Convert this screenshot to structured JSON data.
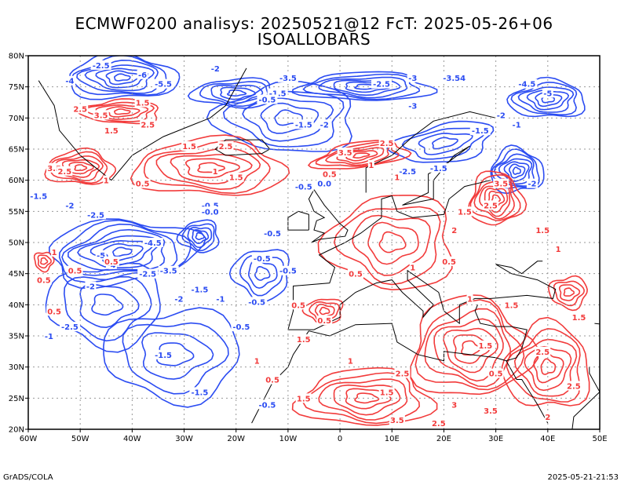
{
  "header": {
    "title_line1": "ECMWF0200 analisys: 20250521@12 FcT: 2025-05-26+06",
    "title_line2": "ISOALLOBARS"
  },
  "footer": {
    "left": "GrADS/COLA",
    "right": "2025-05-21-21:53"
  },
  "map": {
    "lon_range": [
      -60,
      50
    ],
    "lat_range": [
      20,
      80
    ],
    "lon_ticks": [
      "60W",
      "50W",
      "40W",
      "30W",
      "20W",
      "10W",
      "0",
      "10E",
      "20E",
      "30E",
      "40E",
      "50E"
    ],
    "lat_ticks": [
      "20N",
      "25N",
      "30N",
      "35N",
      "40N",
      "45N",
      "50N",
      "55N",
      "60N",
      "65N",
      "70N",
      "75N",
      "80N"
    ],
    "colors": {
      "negative_contour": "#2b4cf2",
      "positive_contour": "#f23b3b",
      "coastline": "#000000",
      "grid": "#999999"
    },
    "contour_labels": [
      {
        "text": "-2.5",
        "lon": -46,
        "lat": 78.5,
        "sign": "neg"
      },
      {
        "text": "-4",
        "lon": -52,
        "lat": 76,
        "sign": "neg"
      },
      {
        "text": "-5.5",
        "lon": -34,
        "lat": 75.5,
        "sign": "neg"
      },
      {
        "text": "-6",
        "lon": -38,
        "lat": 77,
        "sign": "neg"
      },
      {
        "text": "-2",
        "lon": -24,
        "lat": 78,
        "sign": "neg"
      },
      {
        "text": "-3.5",
        "lon": -10,
        "lat": 76.5,
        "sign": "neg"
      },
      {
        "text": "-1.5",
        "lon": -12,
        "lat": 74,
        "sign": "neg"
      },
      {
        "text": "-0.5",
        "lon": -14,
        "lat": 73,
        "sign": "neg"
      },
      {
        "text": "-2.5",
        "lon": 8,
        "lat": 75.5,
        "sign": "neg"
      },
      {
        "text": "-3",
        "lon": 14,
        "lat": 76.5,
        "sign": "neg"
      },
      {
        "text": "-3.54",
        "lon": 22,
        "lat": 76.5,
        "sign": "neg"
      },
      {
        "text": "-4.5",
        "lon": 36,
        "lat": 75.5,
        "sign": "neg"
      },
      {
        "text": "-5",
        "lon": 40,
        "lat": 74,
        "sign": "neg"
      },
      {
        "text": "-3",
        "lon": 14,
        "lat": 72,
        "sign": "neg"
      },
      {
        "text": "-1.5",
        "lon": -7,
        "lat": 69,
        "sign": "neg"
      },
      {
        "text": "-2",
        "lon": -3,
        "lat": 69,
        "sign": "neg"
      },
      {
        "text": "-2",
        "lon": 31,
        "lat": 70.5,
        "sign": "neg"
      },
      {
        "text": "-1",
        "lon": 34,
        "lat": 69,
        "sign": "neg"
      },
      {
        "text": "-1.5",
        "lon": 27,
        "lat": 68,
        "sign": "neg"
      },
      {
        "text": "-2.5",
        "lon": 13,
        "lat": 61.5,
        "sign": "neg"
      },
      {
        "text": "-1.5",
        "lon": 19,
        "lat": 62,
        "sign": "neg"
      },
      {
        "text": "-2",
        "lon": 37,
        "lat": 59.5,
        "sign": "neg"
      },
      {
        "text": "-0.5",
        "lon": -7,
        "lat": 59,
        "sign": "neg"
      },
      {
        "text": "-1.5",
        "lon": -58,
        "lat": 57.5,
        "sign": "neg"
      },
      {
        "text": "-2",
        "lon": -52,
        "lat": 56,
        "sign": "neg"
      },
      {
        "text": "-2.5",
        "lon": -47,
        "lat": 54.5,
        "sign": "neg"
      },
      {
        "text": "-4.5",
        "lon": -36,
        "lat": 50,
        "sign": "neg"
      },
      {
        "text": "-5",
        "lon": -46,
        "lat": 48,
        "sign": "neg"
      },
      {
        "text": "-4",
        "lon": -44,
        "lat": 46.5,
        "sign": "neg"
      },
      {
        "text": "-2.5",
        "lon": -37,
        "lat": 45,
        "sign": "neg"
      },
      {
        "text": "-3.5",
        "lon": -33,
        "lat": 45.5,
        "sign": "neg"
      },
      {
        "text": "-2",
        "lon": -48,
        "lat": 43,
        "sign": "neg"
      },
      {
        "text": "-1.5",
        "lon": -27,
        "lat": 42.5,
        "sign": "neg"
      },
      {
        "text": "-2",
        "lon": -31,
        "lat": 41,
        "sign": "neg"
      },
      {
        "text": "-1",
        "lon": -23,
        "lat": 41,
        "sign": "neg"
      },
      {
        "text": "-0.5",
        "lon": -15,
        "lat": 47.5,
        "sign": "neg"
      },
      {
        "text": "-0.5",
        "lon": -10,
        "lat": 45.5,
        "sign": "neg"
      },
      {
        "text": "-0.5",
        "lon": -16,
        "lat": 40.5,
        "sign": "neg"
      },
      {
        "text": "-0.5",
        "lon": -19,
        "lat": 36.5,
        "sign": "neg"
      },
      {
        "text": "-1.5",
        "lon": -34,
        "lat": 32,
        "sign": "neg"
      },
      {
        "text": "-1.5",
        "lon": -27,
        "lat": 26,
        "sign": "neg"
      },
      {
        "text": "-2.5",
        "lon": -52,
        "lat": 36.5,
        "sign": "neg"
      },
      {
        "text": "-1",
        "lon": -56,
        "lat": 35,
        "sign": "neg"
      },
      {
        "text": "-0.5",
        "lon": -14,
        "lat": 24,
        "sign": "neg"
      },
      {
        "text": "-0.5",
        "lon": -25,
        "lat": 56,
        "sign": "neg"
      },
      {
        "text": "-0.5",
        "lon": -13,
        "lat": 51.5,
        "sign": "neg"
      },
      {
        "text": "2.5",
        "lon": -50,
        "lat": 71.5,
        "sign": "pos"
      },
      {
        "text": "1.5",
        "lon": -38,
        "lat": 72.5,
        "sign": "pos"
      },
      {
        "text": "3.5",
        "lon": -46,
        "lat": 70.5,
        "sign": "pos"
      },
      {
        "text": "2.5",
        "lon": -37,
        "lat": 69,
        "sign": "pos"
      },
      {
        "text": "1.5",
        "lon": -44,
        "lat": 68,
        "sign": "pos"
      },
      {
        "text": "3.5",
        "lon": -55,
        "lat": 62,
        "sign": "pos"
      },
      {
        "text": "2.5",
        "lon": -53,
        "lat": 61.5,
        "sign": "pos"
      },
      {
        "text": "1",
        "lon": -45,
        "lat": 60,
        "sign": "pos"
      },
      {
        "text": "0.5",
        "lon": -38,
        "lat": 59.5,
        "sign": "pos"
      },
      {
        "text": "1.5",
        "lon": -29,
        "lat": 65.5,
        "sign": "pos"
      },
      {
        "text": "2.5",
        "lon": -22,
        "lat": 65.5,
        "sign": "pos"
      },
      {
        "text": "1",
        "lon": -24,
        "lat": 61.5,
        "sign": "pos"
      },
      {
        "text": "1.5",
        "lon": -20,
        "lat": 60.5,
        "sign": "pos"
      },
      {
        "text": "3.5",
        "lon": 1,
        "lat": 64.5,
        "sign": "pos"
      },
      {
        "text": "2.5",
        "lon": 9,
        "lat": 66,
        "sign": "pos"
      },
      {
        "text": "0.5",
        "lon": -2,
        "lat": 61,
        "sign": "pos"
      },
      {
        "text": "1",
        "lon": 6,
        "lat": 62.5,
        "sign": "pos"
      },
      {
        "text": "1",
        "lon": 11,
        "lat": 60.5,
        "sign": "pos"
      },
      {
        "text": "3.5",
        "lon": 31,
        "lat": 59.5,
        "sign": "pos"
      },
      {
        "text": "2.5",
        "lon": 29,
        "lat": 56,
        "sign": "pos"
      },
      {
        "text": "1.5",
        "lon": 24,
        "lat": 55,
        "sign": "pos"
      },
      {
        "text": "2",
        "lon": 22,
        "lat": 52,
        "sign": "pos"
      },
      {
        "text": "1.5",
        "lon": 39,
        "lat": 52,
        "sign": "pos"
      },
      {
        "text": "1",
        "lon": 42,
        "lat": 49,
        "sign": "pos"
      },
      {
        "text": "0.5",
        "lon": -25,
        "lat": 55,
        "sign": "pos"
      },
      {
        "text": "1",
        "lon": -55,
        "lat": 48.5,
        "sign": "pos"
      },
      {
        "text": "0.5",
        "lon": -51,
        "lat": 45.5,
        "sign": "pos"
      },
      {
        "text": "0.5",
        "lon": -44,
        "lat": 47,
        "sign": "pos"
      },
      {
        "text": "0.5",
        "lon": -8,
        "lat": 40,
        "sign": "pos"
      },
      {
        "text": "0.5",
        "lon": -3,
        "lat": 37.5,
        "sign": "pos"
      },
      {
        "text": "1.5",
        "lon": -7,
        "lat": 34.5,
        "sign": "pos"
      },
      {
        "text": "1.5",
        "lon": -7,
        "lat": 25,
        "sign": "pos"
      },
      {
        "text": "1",
        "lon": 2,
        "lat": 31,
        "sign": "pos"
      },
      {
        "text": "1.5",
        "lon": 9,
        "lat": 26,
        "sign": "pos"
      },
      {
        "text": "2.5",
        "lon": 12,
        "lat": 29,
        "sign": "pos"
      },
      {
        "text": "3.5",
        "lon": 11,
        "lat": 21.5,
        "sign": "pos"
      },
      {
        "text": "2.5",
        "lon": 19,
        "lat": 21,
        "sign": "pos"
      },
      {
        "text": "3",
        "lon": 22,
        "lat": 24,
        "sign": "pos"
      },
      {
        "text": "1.5",
        "lon": 28,
        "lat": 33.5,
        "sign": "pos"
      },
      {
        "text": "3.5",
        "lon": 29,
        "lat": 23,
        "sign": "pos"
      },
      {
        "text": "2.5",
        "lon": 39,
        "lat": 32.5,
        "sign": "pos"
      },
      {
        "text": "1.5",
        "lon": 33,
        "lat": 40,
        "sign": "pos"
      },
      {
        "text": "0.5",
        "lon": 30,
        "lat": 29,
        "sign": "pos"
      },
      {
        "text": "1.5",
        "lon": 46,
        "lat": 38,
        "sign": "pos"
      },
      {
        "text": "2.5",
        "lon": 45,
        "lat": 27,
        "sign": "pos"
      },
      {
        "text": "2",
        "lon": 40,
        "lat": 22,
        "sign": "pos"
      },
      {
        "text": "1",
        "lon": 25,
        "lat": 41,
        "sign": "pos"
      },
      {
        "text": "0.5",
        "lon": 3,
        "lat": 45,
        "sign": "pos"
      },
      {
        "text": "1",
        "lon": 14,
        "lat": 46,
        "sign": "pos"
      },
      {
        "text": "0.5",
        "lon": 21,
        "lat": 47,
        "sign": "pos"
      },
      {
        "text": "1",
        "lon": -16,
        "lat": 31,
        "sign": "pos"
      },
      {
        "text": "0.5",
        "lon": -13,
        "lat": 28,
        "sign": "pos"
      },
      {
        "text": "0.5",
        "lon": -55,
        "lat": 39,
        "sign": "pos"
      },
      {
        "text": "0.5",
        "lon": -57,
        "lat": 44,
        "sign": "pos"
      },
      {
        "text": "-0.0",
        "lon": -25,
        "lat": 55,
        "sign": "neg"
      },
      {
        "text": "0.0",
        "lon": -3,
        "lat": 59.5,
        "sign": "neg"
      }
    ]
  }
}
